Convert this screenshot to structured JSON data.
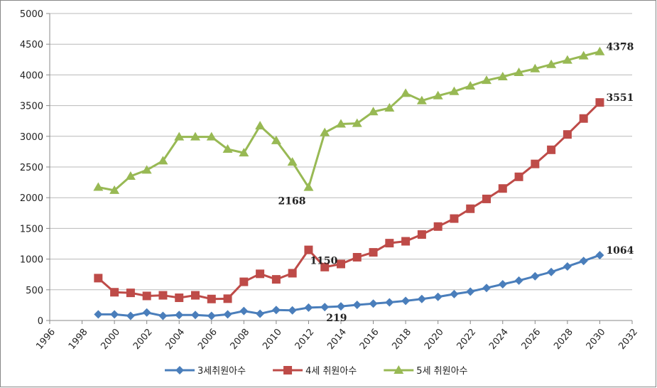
{
  "chart_data": {
    "type": "line",
    "x": [
      1999,
      2000,
      2001,
      2002,
      2003,
      2004,
      2005,
      2006,
      2007,
      2008,
      2009,
      2010,
      2011,
      2012,
      2013,
      2014,
      2015,
      2016,
      2017,
      2018,
      2019,
      2020,
      2021,
      2022,
      2023,
      2024,
      2025,
      2026,
      2027,
      2028,
      2029,
      2030
    ],
    "series": [
      {
        "name": "3세취원아수",
        "color": "#4a7ebb",
        "marker": "diamond",
        "data_labels": [
          14,
          31
        ],
        "values": [
          100,
          100,
          75,
          130,
          75,
          90,
          90,
          75,
          100,
          155,
          110,
          170,
          165,
          210,
          219,
          230,
          255,
          275,
          295,
          320,
          350,
          385,
          430,
          470,
          530,
          590,
          650,
          720,
          790,
          880,
          970,
          1064
        ]
      },
      {
        "name": "4세 취원아수",
        "color": "#be4b48",
        "marker": "square",
        "data_labels": [
          13,
          31
        ],
        "values": [
          690,
          460,
          450,
          400,
          410,
          370,
          410,
          350,
          355,
          630,
          760,
          670,
          770,
          1150,
          870,
          920,
          1030,
          1110,
          1260,
          1290,
          1400,
          1530,
          1660,
          1820,
          1980,
          2150,
          2340,
          2550,
          2780,
          3030,
          3290,
          3551
        ]
      },
      {
        "name": "5세 취원아수",
        "color": "#98b954",
        "marker": "triangle",
        "data_labels": [
          13,
          31
        ],
        "values": [
          2170,
          2120,
          2350,
          2450,
          2600,
          2990,
          2990,
          2990,
          2790,
          2730,
          3170,
          2930,
          2580,
          2168,
          3060,
          3200,
          3210,
          3400,
          3460,
          3700,
          3580,
          3660,
          3730,
          3820,
          3910,
          3970,
          4040,
          4100,
          4170,
          4240,
          4310,
          4378
        ]
      }
    ],
    "xlim": [
      1996,
      2032
    ],
    "xticks": [
      1996,
      1998,
      2000,
      2002,
      2004,
      2006,
      2008,
      2010,
      2012,
      2014,
      2016,
      2018,
      2020,
      2022,
      2024,
      2026,
      2028,
      2030,
      2032
    ],
    "ylim": [
      0,
      5000
    ],
    "yticks": [
      0,
      500,
      1000,
      1500,
      2000,
      2500,
      3000,
      3500,
      4000,
      4500,
      5000
    ],
    "grid": true,
    "legend": "bottom"
  }
}
